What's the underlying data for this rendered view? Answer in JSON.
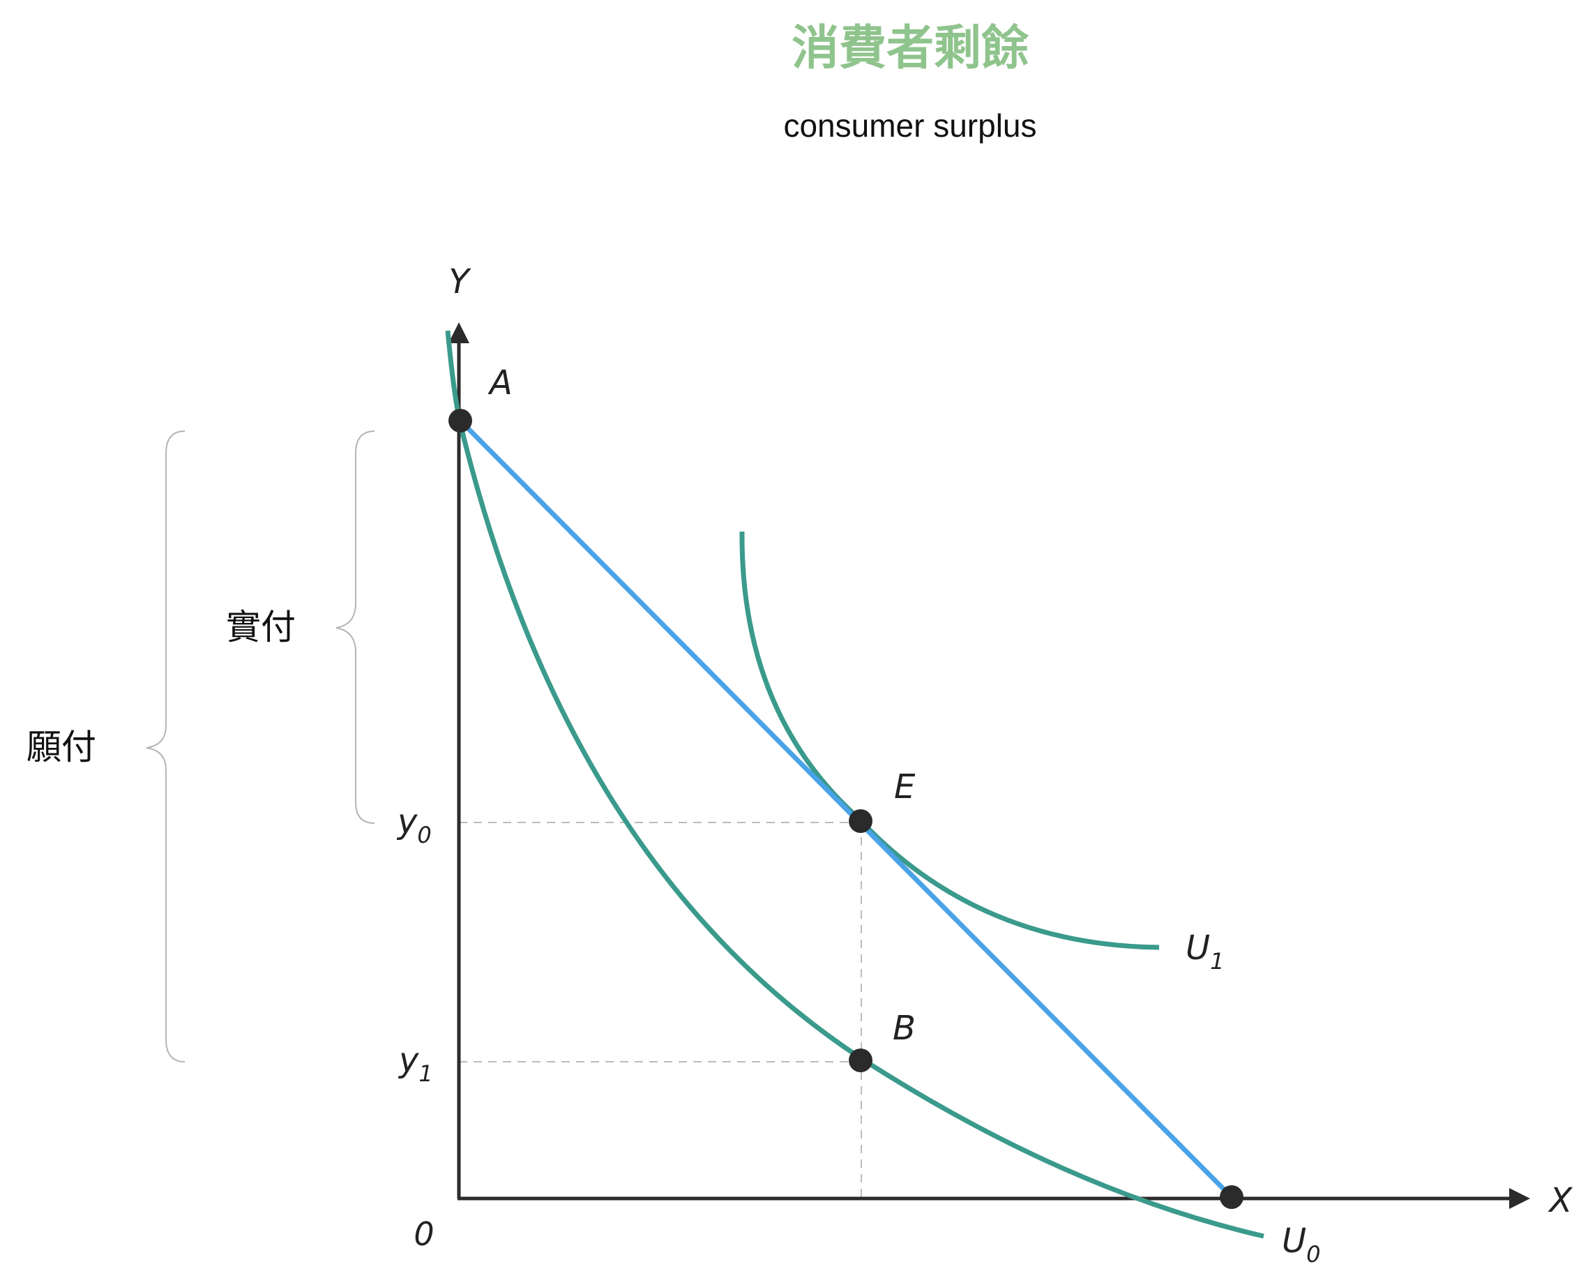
{
  "title": "消費者剩餘",
  "subtitle": "consumer surplus",
  "axes": {
    "y": "Y",
    "x": "X",
    "origin": "0"
  },
  "ticks": {
    "y0": {
      "main": "y",
      "sub": "0"
    },
    "y1": {
      "main": "y",
      "sub": "1"
    }
  },
  "points": {
    "A": "A",
    "E": "E",
    "B": "B"
  },
  "curves": {
    "U1": {
      "main": "U",
      "sub": "1"
    },
    "U0": {
      "main": "U",
      "sub": "0"
    }
  },
  "braces": {
    "actual_pay": "實付",
    "willing_pay": "願付"
  },
  "colors": {
    "title": "#8fc48d",
    "curve": "#3a9a8c",
    "budget_line": "#4aa3e8",
    "point": "#2b2b2b",
    "axis": "#2b2b2b",
    "guide": "#bbbbbb",
    "brace": "#b5b5b5"
  }
}
